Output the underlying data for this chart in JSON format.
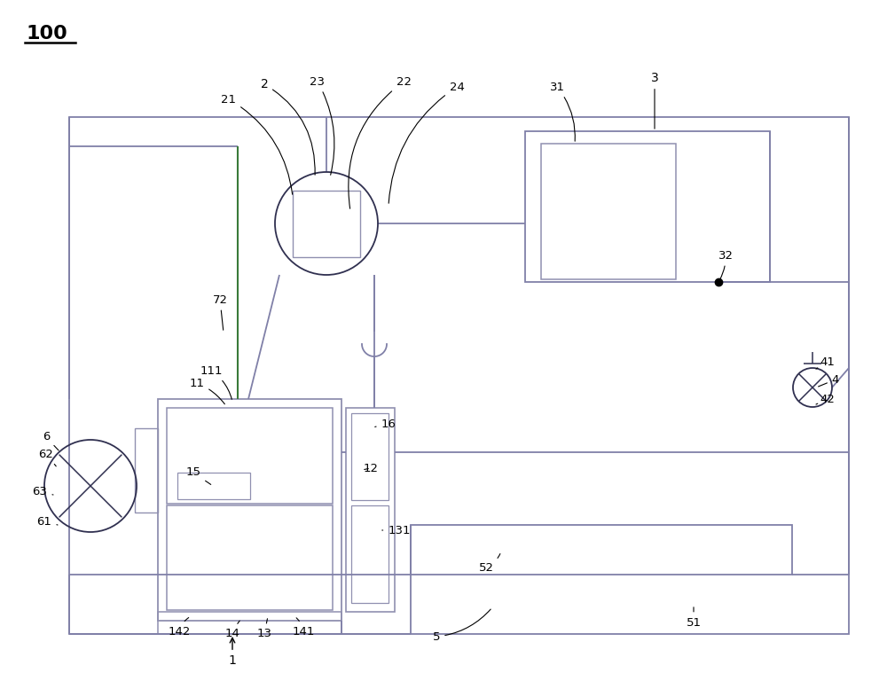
{
  "bg_color": "#ffffff",
  "box_color": "#9090b0",
  "pipe_color": "#8080a8",
  "dark_color": "#303050",
  "green_color": "#3a7a3a",
  "fig_width": 10.0,
  "fig_height": 7.59,
  "dpi": 100
}
